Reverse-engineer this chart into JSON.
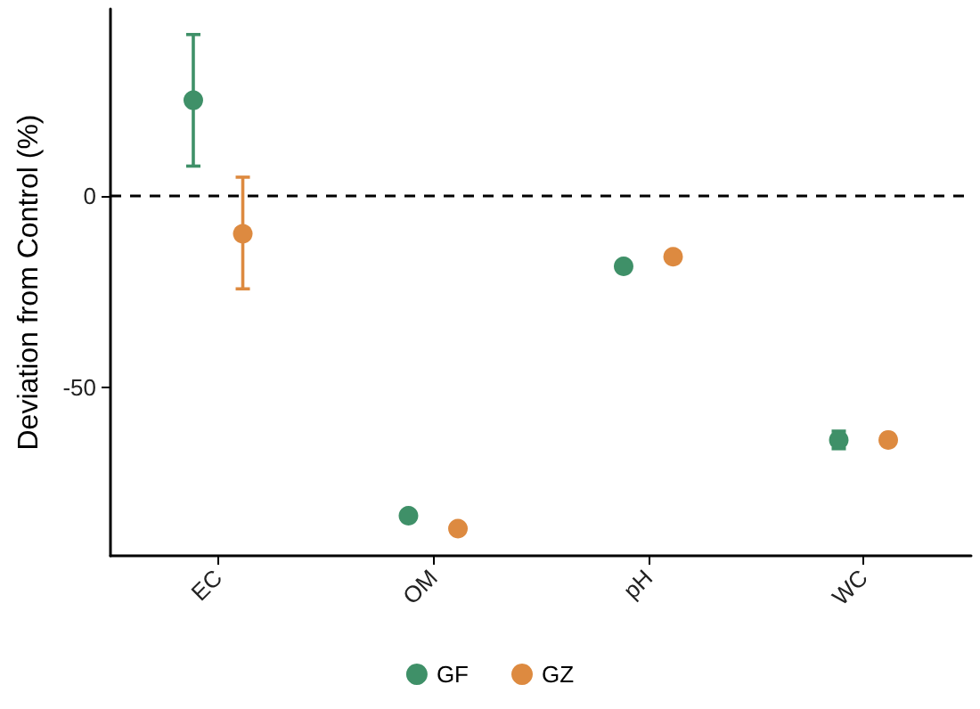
{
  "chart_data": {
    "type": "scatter",
    "ylabel": "Deviation from Control (%)",
    "categories": [
      "EC",
      "OM",
      "pH",
      "WC"
    ],
    "series": [
      {
        "name": "GF",
        "color": "#3f9068",
        "values": [
          25.1,
          -83.5,
          -18.3,
          -63.7
        ],
        "errors": [
          [
            7.9,
            42.3
          ],
          null,
          null,
          [
            -66.0,
            -61.4
          ]
        ]
      },
      {
        "name": "GZ",
        "color": "#dd8a40",
        "values": [
          -9.8,
          -86.9,
          -15.8,
          -63.7
        ],
        "errors": [
          [
            -24.2,
            5.0
          ],
          null,
          null,
          null
        ]
      }
    ],
    "ylim": [
      -94,
      49
    ],
    "yticks": [
      -50,
      0
    ],
    "ref_lines": [
      {
        "axis": "y",
        "value": 0,
        "line_style": "dashed",
        "color": "#000000"
      }
    ],
    "grid": false,
    "legend": "bottom",
    "marker": "circle"
  }
}
